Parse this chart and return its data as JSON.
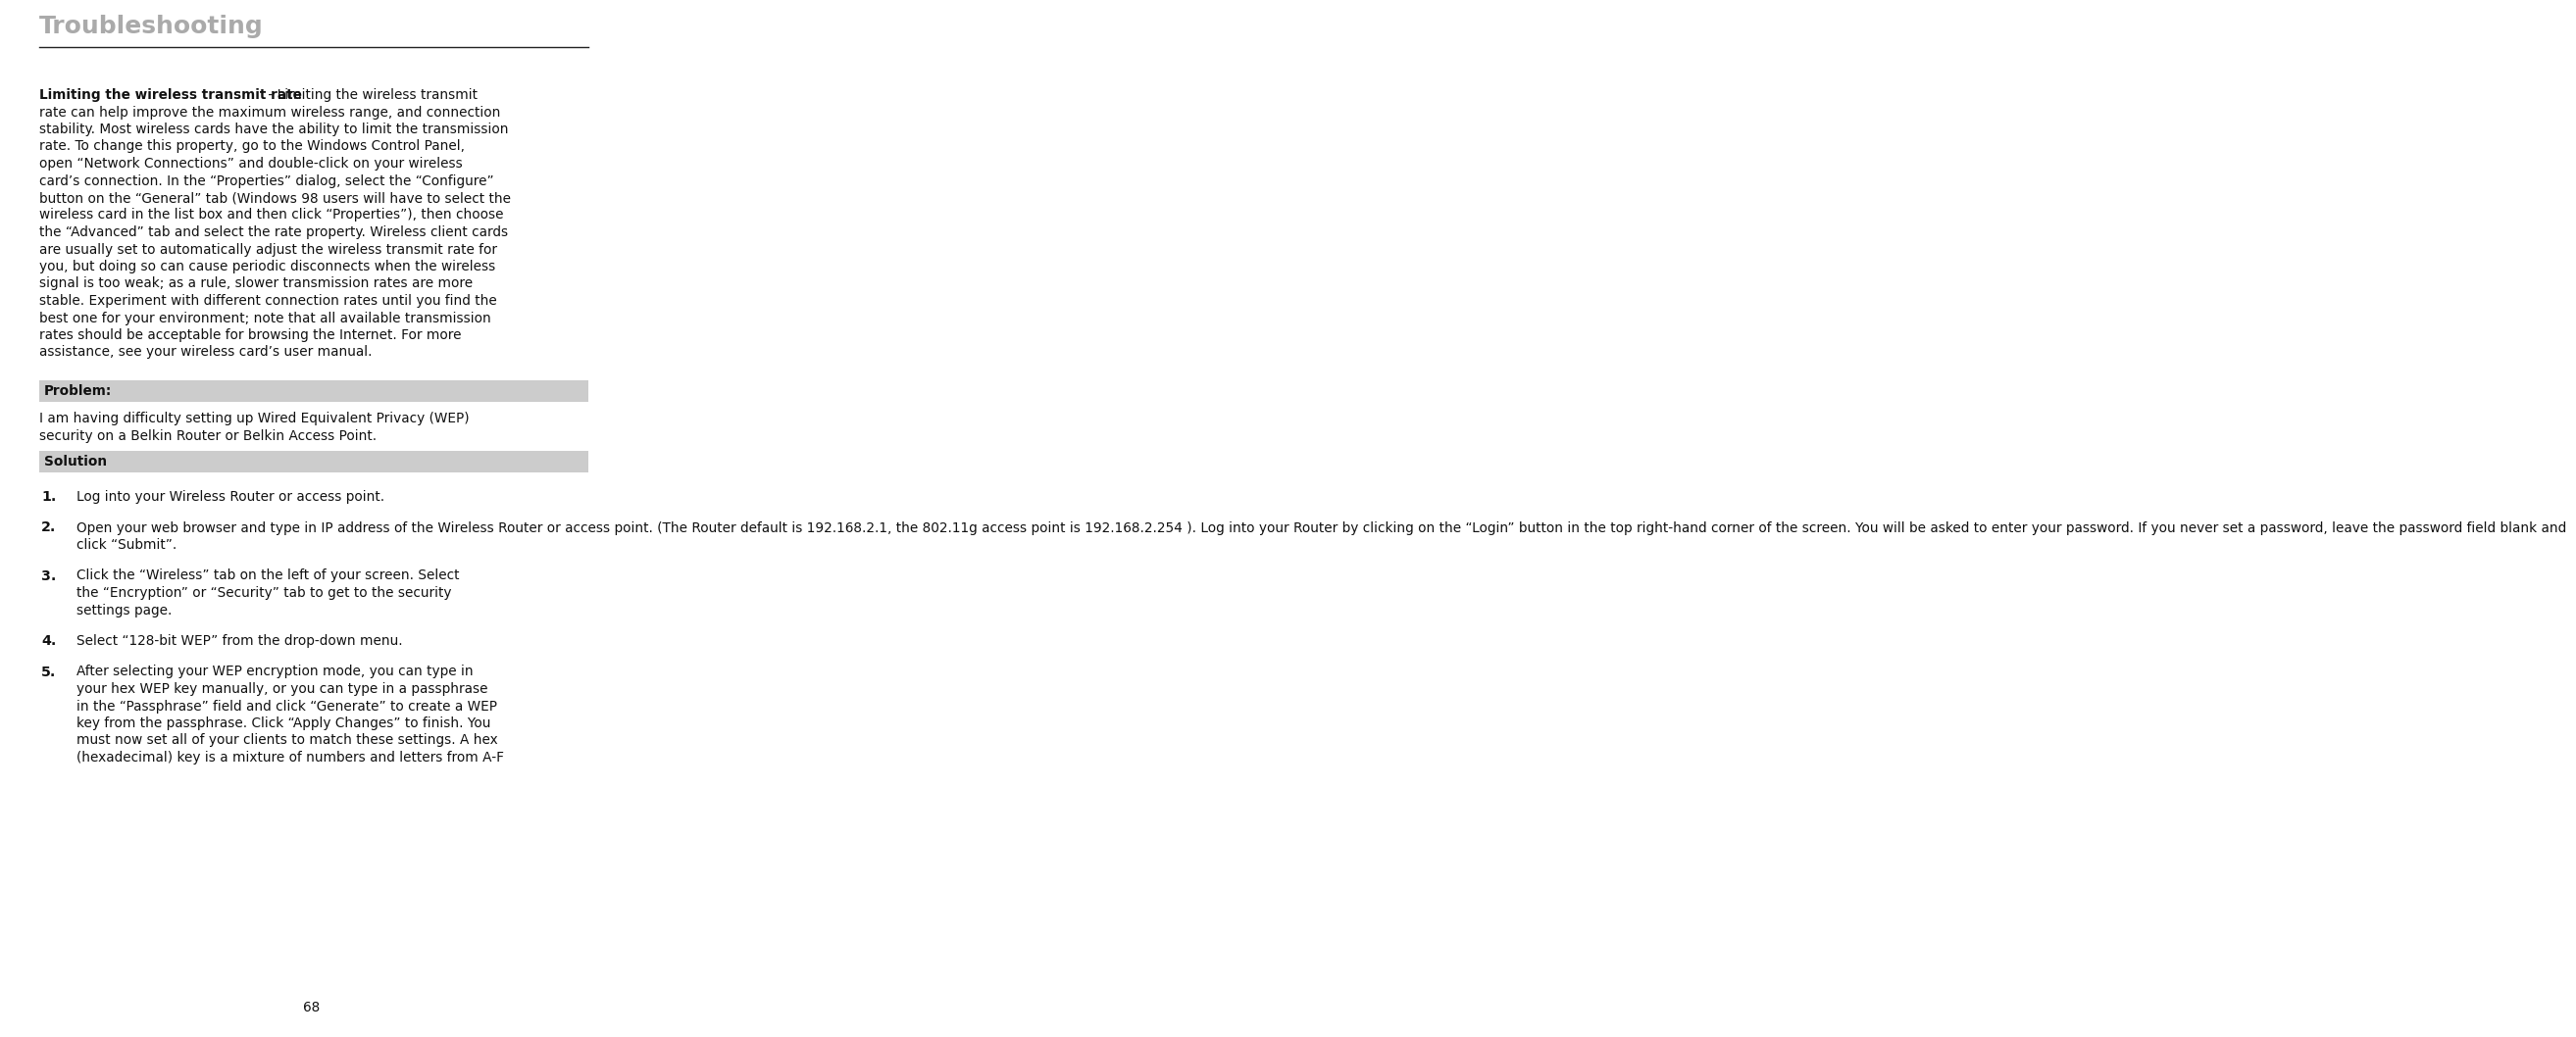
{
  "bg_color": "#ffffff",
  "title": "Troubleshooting",
  "title_color": "#aaaaaa",
  "title_fontsize": 18,
  "separator_color": "#222222",
  "header_bg": "#cccccc",
  "body_text_color": "#111111",
  "body_fontsize": 9.8,
  "bold_intro_label": "Limiting the wireless transmit rate",
  "bold_intro_rest": " - Limiting the wireless transmit rate can help improve the maximum wireless range, and connection stability. Most wireless cards have the ability to limit the transmission rate. To change this property, go to the Windows Control Panel, open “Network Connections” and double-click on your wireless card’s connection. In the “Properties” dialog, select the “Configure” button on the “General” tab (Windows 98 users will have to select the wireless card in the list box and then click “Properties”), then choose the “Advanced” tab and select the rate property. Wireless client cards are usually set to automatically adjust the wireless transmit rate for you, but doing so can cause periodic disconnects when the wireless signal is too weak; as a rule, slower transmission rates are more stable. Experiment with different connection rates until you find the best one for your environment; note that all available transmission rates should be acceptable for browsing the Internet. For more assistance, see your wireless card’s user manual.",
  "problem_label": "Problem:",
  "problem_text": "I am having difficulty setting up Wired Equivalent Privacy (WEP)\nsecurity on a Belkin Router or Belkin Access Point.",
  "solution_label": "Solution",
  "steps": [
    {
      "num": "1.",
      "text": "Log into your Wireless Router or access point."
    },
    {
      "num": "2.",
      "text": "Open your web browser and type in IP address of the Wireless Router or access point. (The Router default is 192.168.2.1, the 802.11g access point is 192.168.2.254 ). Log into your Router by clicking on the “Login” button in the top right-hand corner of the screen. You will be asked to enter your password. If you never set a password, leave the password field blank and\nclick “Submit”."
    },
    {
      "num": "3.",
      "text": "Click the “Wireless” tab on the left of your screen. Select\nthe “Encryption” or “Security” tab to get to the security\nsettings page."
    },
    {
      "num": "4.",
      "text": "Select “128-bit WEP” from the drop-down menu."
    },
    {
      "num": "5.",
      "text": "After selecting your WEP encryption mode, you can type in\nyour hex WEP key manually, or you can type in a passphrase\nin the “Passphrase” field and click “Generate” to create a WEP\nkey from the passphrase. Click “Apply Changes” to finish. You\nmust now set all of your clients to match these settings. A hex\n(hexadecimal) key is a mixture of numbers and letters from A-F"
    }
  ],
  "page_number": "68",
  "intro_lines": [
    {
      "bold": "Limiting the wireless transmit rate",
      "normal": " - Limiting the wireless transmit"
    },
    {
      "bold": "",
      "normal": "rate can help improve the maximum wireless range, and connection"
    },
    {
      "bold": "",
      "normal": "stability. Most wireless cards have the ability to limit the transmission"
    },
    {
      "bold": "",
      "normal": "rate. To change this property, go to the Windows Control Panel,"
    },
    {
      "bold": "",
      "normal": "open “Network Connections” and double-click on your wireless"
    },
    {
      "bold": "",
      "normal": "card’s connection. In the “Properties” dialog, select the “Configure”"
    },
    {
      "bold": "",
      "normal": "button on the “General” tab (Windows 98 users will have to select the"
    },
    {
      "bold": "",
      "normal": "wireless card in the list box and then click “Properties”), then choose"
    },
    {
      "bold": "",
      "normal": "the “Advanced” tab and select the rate property. Wireless client cards"
    },
    {
      "bold": "",
      "normal": "are usually set to automatically adjust the wireless transmit rate for"
    },
    {
      "bold": "",
      "normal": "you, but doing so can cause periodic disconnects when the wireless"
    },
    {
      "bold": "",
      "normal": "signal is too weak; as a rule, slower transmission rates are more"
    },
    {
      "bold": "",
      "normal": "stable. Experiment with different connection rates until you find the"
    },
    {
      "bold": "",
      "normal": "best one for your environment; note that all available transmission"
    },
    {
      "bold": "",
      "normal": "rates should be acceptable for browsing the Internet. For more"
    },
    {
      "bold": "",
      "normal": "assistance, see your wireless card’s user manual."
    }
  ]
}
